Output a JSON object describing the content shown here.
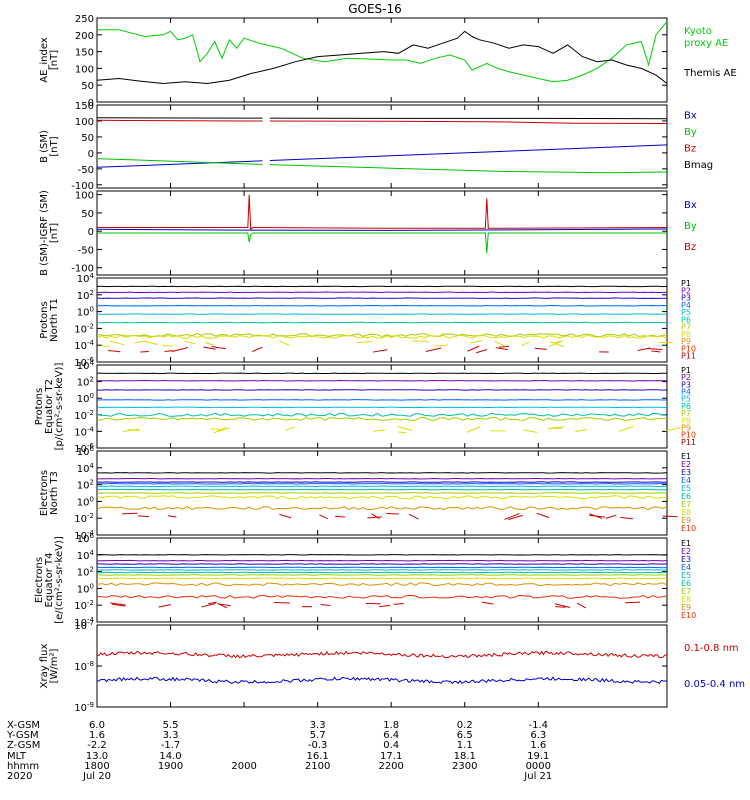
{
  "chart_data": {
    "type": "line",
    "title": "GOES-16",
    "panels": [
      {
        "id": "ae",
        "ylabel": [
          "AE_index",
          "[nT]"
        ],
        "yscale": "linear",
        "ylim": [
          0,
          250
        ],
        "yticks": [
          "0",
          "50",
          "100",
          "150",
          "200",
          "250"
        ],
        "legend": [
          {
            "text": "Kyoto",
            "color": "#00d000"
          },
          {
            "text": "proxy AE",
            "color": "#00d000"
          },
          {
            "text": "Themis AE",
            "color": "#000000"
          }
        ],
        "series": [
          {
            "name": "Kyoto proxy AE",
            "color": "#00d000",
            "x": [
              0,
              0.3,
              0.65,
              0.9,
              1.0,
              1.1,
              1.2,
              1.3,
              1.4,
              1.5,
              1.6,
              1.7,
              1.8,
              1.9,
              2.0,
              2.2,
              2.5,
              2.8,
              3.1,
              3.4,
              3.7,
              4.0,
              4.2,
              4.4,
              4.6,
              4.8,
              5.0,
              5.1,
              5.2,
              5.3,
              5.45,
              5.6,
              5.8,
              6.0,
              6.2,
              6.4,
              6.6,
              6.8,
              7.0,
              7.2,
              7.4,
              7.5,
              7.6,
              7.75
            ],
            "y": [
              215,
              215,
              195,
              200,
              210,
              185,
              190,
              200,
              120,
              145,
              180,
              130,
              185,
              160,
              190,
              175,
              160,
              130,
              120,
              130,
              128,
              125,
              125,
              115,
              130,
              140,
              125,
              95,
              105,
              115,
              100,
              90,
              80,
              70,
              60,
              65,
              80,
              100,
              130,
              170,
              180,
              110,
              200,
              240
            ]
          },
          {
            "name": "Themis AE",
            "color": "#000000",
            "x": [
              0,
              0.3,
              0.6,
              0.9,
              1.2,
              1.5,
              1.8,
              2.1,
              2.4,
              2.7,
              3.0,
              3.3,
              3.6,
              3.9,
              4.1,
              4.3,
              4.5,
              4.7,
              4.9,
              5.0,
              5.1,
              5.2,
              5.4,
              5.6,
              5.8,
              6.0,
              6.2,
              6.4,
              6.6,
              6.8,
              7.0,
              7.2,
              7.4,
              7.6,
              7.75
            ],
            "y": [
              65,
              70,
              62,
              55,
              60,
              55,
              65,
              85,
              100,
              120,
              135,
              140,
              145,
              150,
              145,
              170,
              160,
              175,
              190,
              210,
              195,
              185,
              175,
              160,
              170,
              165,
              145,
              170,
              135,
              120,
              125,
              110,
              100,
              80,
              55
            ]
          }
        ]
      },
      {
        "id": "b",
        "ylabel": [
          "B (SM)",
          "[nT]"
        ],
        "yscale": "linear",
        "ylim": [
          -110,
          150
        ],
        "yticks": [
          "-100",
          "-50",
          "0",
          "50",
          "100",
          "150"
        ],
        "legend": [
          {
            "text": "Bx",
            "color": "#0000cc"
          },
          {
            "text": "By",
            "color": "#00c000"
          },
          {
            "text": "Bz",
            "color": "#cc0000"
          },
          {
            "text": "Bmag",
            "color": "#000000"
          }
        ],
        "gap": [
          2.25,
          2.35
        ],
        "series": [
          {
            "name": "Bx",
            "color": "#0000cc",
            "x": [
              0,
              7.75
            ],
            "y": [
              -45,
              25
            ]
          },
          {
            "name": "By",
            "color": "#00c000",
            "x": [
              0,
              1.5,
              2.5,
              4.0,
              5.5,
              7.0,
              7.75
            ],
            "y": [
              -18,
              -30,
              -38,
              -48,
              -58,
              -62,
              -60
            ]
          },
          {
            "name": "Bz",
            "color": "#cc0000",
            "x": [
              0,
              2.0,
              4.0,
              5.5,
              6.5,
              7.75
            ],
            "y": [
              102,
              100,
              99,
              97,
              93,
              92
            ]
          },
          {
            "name": "Bmag",
            "color": "#000000",
            "x": [
              0,
              2.0,
              4.0,
              6.0,
              7.75
            ],
            "y": [
              110,
              109,
              108,
              108,
              107
            ]
          }
        ]
      },
      {
        "id": "db",
        "ylabel": [
          "B (SM)-IGRF (SM)",
          "[nT]"
        ],
        "yscale": "linear",
        "ylim": [
          -120,
          110
        ],
        "yticks": [
          "-100",
          "-50",
          "0",
          "50",
          "100"
        ],
        "legend": [
          {
            "text": "Bx",
            "color": "#0000cc"
          },
          {
            "text": "By",
            "color": "#00c000"
          },
          {
            "text": "Bz",
            "color": "#cc0000"
          }
        ],
        "series": [
          {
            "name": "Bx",
            "color": "#0000cc",
            "x": [
              0,
              2.0,
              4.0,
              6.0,
              7.75
            ],
            "y": [
              5,
              3,
              2,
              4,
              6
            ]
          },
          {
            "name": "By",
            "color": "#00c000",
            "x": [
              0,
              2.05,
              2.07,
              2.09,
              2.12,
              2.5,
              4.0,
              5.28,
              5.3,
              5.32,
              6.0,
              7.75
            ],
            "y": [
              -5,
              -5,
              -30,
              -10,
              -5,
              -5,
              -5,
              -5,
              -60,
              -5,
              -5,
              -5
            ]
          },
          {
            "name": "Bz",
            "color": "#cc0000",
            "x": [
              0,
              2.05,
              2.07,
              2.09,
              2.12,
              4.0,
              5.28,
              5.3,
              5.32,
              7.75
            ],
            "y": [
              10,
              10,
              100,
              5,
              10,
              8,
              8,
              90,
              8,
              10
            ]
          }
        ]
      },
      {
        "id": "pn",
        "ylabel": [
          "Protons",
          "North T1"
        ],
        "yscale": "log",
        "ylim": [
          -6,
          4
        ],
        "yticks": [
          "10^-6",
          "10^-4",
          "10^-2",
          "10^0",
          "10^2",
          "10^4"
        ],
        "legend_colors": [
          "#000000",
          "#7700aa",
          "#2200cc",
          "#0066ff",
          "#00bbdd",
          "#00c0a0",
          "#a0d000",
          "#dddd00",
          "#e09000",
          "#ee3000",
          "#aa0000"
        ],
        "legend": [
          "P1",
          "P2",
          "P3",
          "P4",
          "P5",
          "P6",
          "P7",
          "P8",
          "P9",
          "P10",
          "P11"
        ],
        "levels": [
          3.0,
          2.3,
          1.6,
          0.7,
          -0.3,
          -1.3,
          -2.8,
          -3.0
        ],
        "sparse": [
          {
            "level": -4.5,
            "color": "#cc0000"
          },
          {
            "level": -3.8,
            "color": "#dddd00"
          }
        ]
      },
      {
        "id": "pe",
        "ylabel": [
          "Protons",
          "Equator T2",
          "[p/(cm²-s-sr-keV)]"
        ],
        "yscale": "log",
        "ylim": [
          -6,
          4
        ],
        "yticks": [
          "10^-6",
          "10^-4",
          "10^-2",
          "10^0",
          "10^2",
          "10^4"
        ],
        "legend_colors": [
          "#000000",
          "#7700aa",
          "#2200cc",
          "#0066ff",
          "#00bbdd",
          "#00c0a0",
          "#a0d000",
          "#dddd00",
          "#e09000",
          "#ee3000",
          "#aa0000"
        ],
        "legend": [
          "P1",
          "P2",
          "P3",
          "P4",
          "P5",
          "P6",
          "P7",
          "P8",
          "P9",
          "P10",
          "P11"
        ],
        "levels": [
          3.0,
          2.1,
          1.0,
          -0.2,
          -1.1,
          -2.0,
          -2.5
        ],
        "sparse": [
          {
            "level": -3.8,
            "color": "#dddd00"
          }
        ]
      },
      {
        "id": "en",
        "ylabel": [
          "Electrons",
          "North T3"
        ],
        "yscale": "log",
        "ylim": [
          -4,
          6
        ],
        "yticks": [
          "10^-4",
          "10^-2",
          "10^0",
          "10^2",
          "10^4",
          "10^6"
        ],
        "legend_colors": [
          "#000000",
          "#7700aa",
          "#2200cc",
          "#0066ff",
          "#00bbdd",
          "#00c0a0",
          "#a0d000",
          "#dddd00",
          "#e09000",
          "#ee3000",
          "#aa0000"
        ],
        "legend": [
          "E1",
          "E2",
          "E3",
          "E4",
          "E5",
          "E6",
          "E7",
          "E8",
          "E9",
          "E10"
        ],
        "levels": [
          3.4,
          2.7,
          2.3,
          2.1,
          1.8,
          1.4,
          1.0,
          0.5,
          -0.8
        ],
        "sparse": [
          {
            "level": -1.8,
            "color": "#cc0000"
          }
        ]
      },
      {
        "id": "ee",
        "ylabel": [
          "Electrons",
          "Equator T4",
          "[e/(cm²-s-sr-keV)]"
        ],
        "yscale": "log",
        "ylim": [
          -4,
          6
        ],
        "yticks": [
          "10^-4",
          "10^-2",
          "10^0",
          "10^2",
          "10^4",
          "10^6"
        ],
        "legend_colors": [
          "#000000",
          "#7700aa",
          "#2200cc",
          "#0066ff",
          "#00bbdd",
          "#00c0a0",
          "#a0d000",
          "#dddd00",
          "#e09000",
          "#ee3000",
          "#aa0000"
        ],
        "legend": [
          "E1",
          "E2",
          "E3",
          "E4",
          "E5",
          "E6",
          "E7",
          "E8",
          "E9",
          "E10"
        ],
        "levels": [
          4.0,
          3.3,
          2.9,
          2.5,
          2.2,
          1.9,
          1.6,
          1.2,
          0.5,
          -1.0
        ],
        "sparse": [
          {
            "level": -2.0,
            "color": "#cc0000"
          }
        ]
      },
      {
        "id": "xray",
        "ylabel": [
          "Xray flux",
          "[W/m²]"
        ],
        "yscale": "log",
        "ylim": [
          -9,
          -7
        ],
        "yticks": [
          "10^-9",
          "10^-8",
          "10^-7"
        ],
        "legend": [
          {
            "text": "0.1-0.8 nm",
            "color": "#cc0000"
          },
          {
            "text": "0.05-0.4 nm",
            "color": "#0000cc"
          }
        ],
        "series": [
          {
            "name": "0.1-0.8 nm",
            "color": "#cc0000",
            "base": -7.72
          },
          {
            "name": "0.05-0.4 nm",
            "color": "#0000cc",
            "base": -8.35
          }
        ]
      }
    ],
    "xticks": [
      {
        "x": 0.0,
        "hhmm": "1800",
        "date": "Jul 20",
        "xgsm": "6.0",
        "ygsm": "1.6",
        "zgsm": "-2.2",
        "mlt": "13.0"
      },
      {
        "x": 1.0,
        "hhmm": "1900",
        "date": "",
        "xgsm": "5.5",
        "ygsm": "3.3",
        "zgsm": "-1.7",
        "mlt": "14.0"
      },
      {
        "x": 2.0,
        "hhmm": "2000",
        "date": "",
        "xgsm": "",
        "ygsm": "",
        "zgsm": "",
        "mlt": ""
      },
      {
        "x": 3.0,
        "hhmm": "2100",
        "date": "",
        "xgsm": "3.3",
        "ygsm": "5.7",
        "zgsm": "-0.3",
        "mlt": "16.1"
      },
      {
        "x": 4.0,
        "hhmm": "2200",
        "date": "",
        "xgsm": "1.8",
        "ygsm": "6.4",
        "zgsm": "0.4",
        "mlt": "17.1"
      },
      {
        "x": 5.0,
        "hhmm": "2300",
        "date": "",
        "xgsm": "0.2",
        "ygsm": "6.5",
        "zgsm": "1.1",
        "mlt": "18.1"
      },
      {
        "x": 6.0,
        "hhmm": "0000",
        "date": "Jul 21",
        "xgsm": "-1.4",
        "ygsm": "6.3",
        "zgsm": "1.6",
        "mlt": "19.1"
      }
    ],
    "xrange": [
      0,
      7.75
    ],
    "row_labels": [
      "X-GSM",
      "Y-GSM",
      "Z-GSM",
      "MLT",
      "hhmm",
      "2020"
    ]
  }
}
